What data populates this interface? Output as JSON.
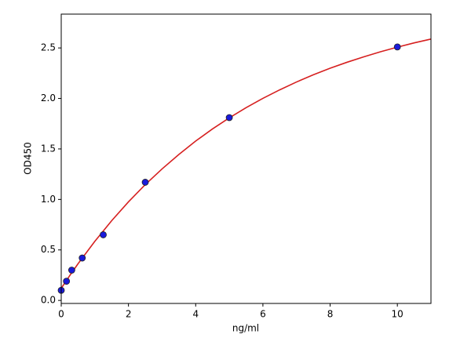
{
  "chart_data": {
    "type": "scatter",
    "x_label": "ng/ml",
    "y_label": "OD450",
    "xlim": [
      0,
      11
    ],
    "ylim": [
      -0.03,
      2.835
    ],
    "xticks": [
      0,
      2,
      4,
      6,
      8,
      10
    ],
    "yticks": [
      {
        "value": 0,
        "label": "0.0"
      },
      0.5,
      {
        "value": 1,
        "label": "1.0"
      },
      1.5,
      {
        "value": 2,
        "label": "2.0"
      },
      2.5
    ],
    "series": [
      {
        "color": "#d62020",
        "line": true,
        "x": [
          0,
          0.25,
          0.5,
          1,
          1.5,
          2,
          2.5,
          3,
          3.5,
          4,
          4.5,
          5,
          5.5,
          6,
          6.5,
          7,
          7.5,
          8,
          8.5,
          9,
          9.5,
          10,
          10.5,
          11
        ],
        "values": [
          0.12,
          0.244,
          0.363,
          0.585,
          0.789,
          0.976,
          1.147,
          1.302,
          1.445,
          1.578,
          1.698,
          1.808,
          1.909,
          2.001,
          2.085,
          2.163,
          2.234,
          2.299,
          2.358,
          2.412,
          2.462,
          2.508,
          2.55,
          2.588
        ]
      },
      {
        "color": "#1a1adb",
        "marker": true,
        "x": [
          0,
          0.156,
          0.3125,
          0.625,
          1.25,
          2.5,
          5,
          10
        ],
        "values": [
          0.1,
          0.19,
          0.3,
          0.42,
          0.65,
          1.17,
          1.81,
          2.51
        ]
      }
    ]
  }
}
